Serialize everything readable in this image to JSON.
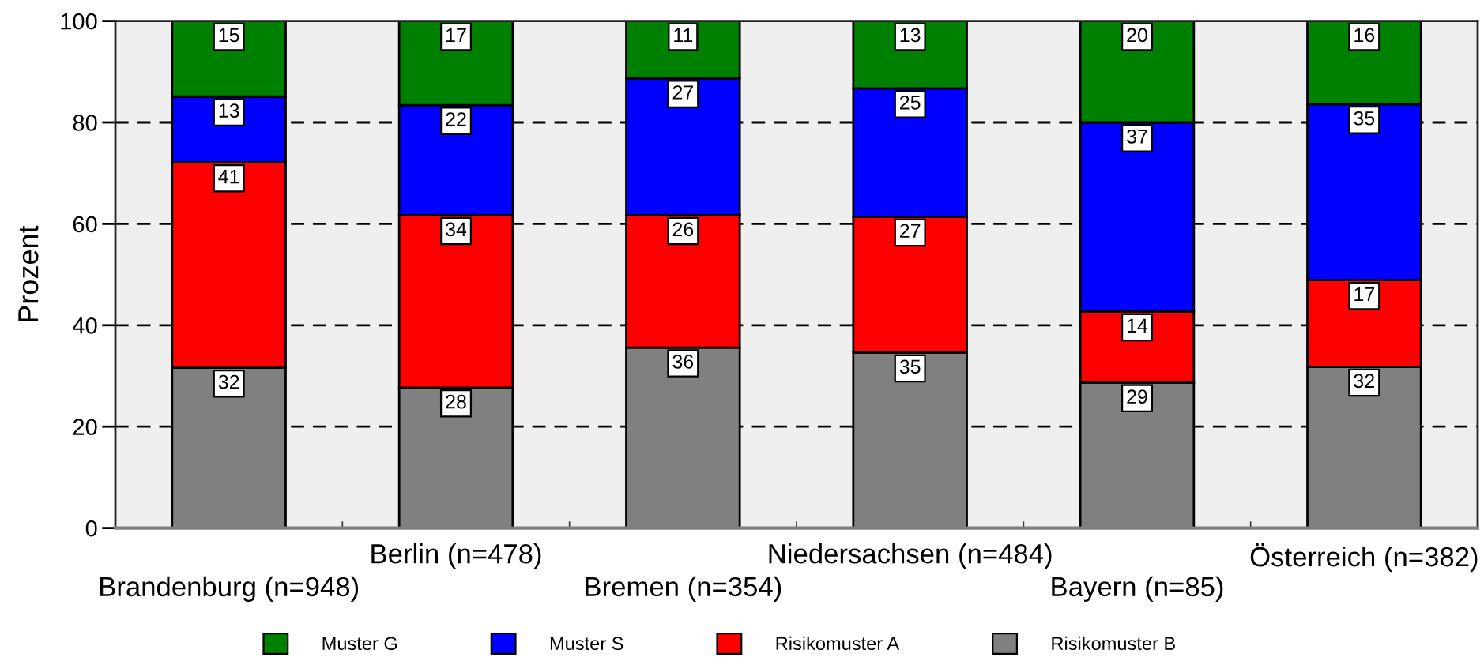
{
  "chart_data": {
    "type": "bar",
    "stacked": true,
    "ylabel": "Prozent",
    "categories": [
      "Brandenburg (n=948)",
      "Berlin (n=478)",
      "Bremen (n=354)",
      "Niedersachsen (n=484)",
      "Bayern (n=85)",
      "Österreich (n=382)"
    ],
    "series": [
      {
        "name": "Risikomuster B",
        "color": "#808080",
        "values": [
          31.6,
          27.7,
          35.6,
          34.6,
          28.7,
          31.8
        ],
        "value_labels": [
          "32",
          "28",
          "36",
          "35",
          "29",
          "32"
        ]
      },
      {
        "name": "Risikomuster A",
        "color": "#ff0000",
        "values": [
          40.5,
          34.0,
          26.1,
          26.8,
          14.0,
          17.1
        ],
        "value_labels": [
          "41",
          "34",
          "26",
          "27",
          "14",
          "17"
        ]
      },
      {
        "name": "Muster S",
        "color": "#0000ff",
        "values": [
          13.0,
          21.7,
          27.0,
          25.3,
          37.3,
          34.7
        ],
        "value_labels": [
          "13",
          "22",
          "27",
          "25",
          "37",
          "35"
        ]
      },
      {
        "name": "Muster G",
        "color": "#008000",
        "values": [
          14.9,
          16.6,
          11.3,
          13.3,
          20.0,
          16.4
        ],
        "value_labels": [
          "15",
          "17",
          "11",
          "13",
          "20",
          "16"
        ]
      }
    ],
    "ylim": [
      0,
      100
    ],
    "yticks": [
      0,
      20,
      40,
      60,
      80,
      100
    ],
    "grid": "y",
    "legend": "bottom"
  }
}
